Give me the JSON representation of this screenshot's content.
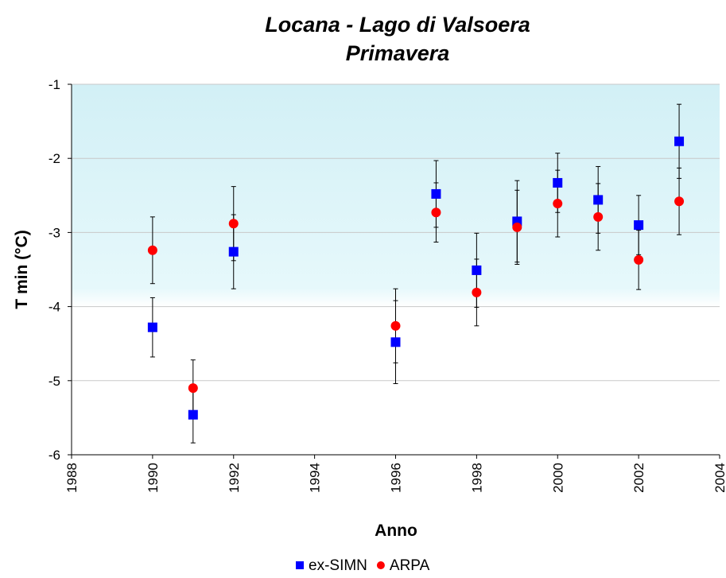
{
  "chart_data": {
    "type": "scatter",
    "title": "Locana - Lago di Valsoera",
    "subtitle": "Primavera",
    "x_label": "Anno",
    "y_label": "T min (°C)",
    "x": [
      1990,
      1991,
      1992,
      1996,
      1997,
      1998,
      1999,
      2000,
      2001,
      2002,
      2003
    ],
    "series": [
      {
        "name": "ex-SIMN",
        "color": "#0000ff",
        "marker": "square",
        "values": [
          -4.28,
          -5.46,
          -3.26,
          -4.48,
          -2.48,
          -3.51,
          -2.85,
          -2.33,
          -2.56,
          -2.9,
          -1.77
        ],
        "errors": [
          0.4,
          0.38,
          0.5,
          0.56,
          0.45,
          0.5,
          0.55,
          0.4,
          0.45,
          0.4,
          0.5
        ]
      },
      {
        "name": "ARPA",
        "color": "#ff0000",
        "marker": "circle",
        "values": [
          -3.24,
          -5.1,
          -2.88,
          -4.26,
          -2.73,
          -3.81,
          -2.93,
          -2.61,
          -2.79,
          -3.37,
          -2.58
        ],
        "errors": [
          0.45,
          0.38,
          0.5,
          0.5,
          0.4,
          0.45,
          0.5,
          0.45,
          0.45,
          0.4,
          0.45
        ]
      }
    ],
    "xlim": [
      1988,
      2004
    ],
    "xticks": [
      1988,
      1990,
      1992,
      1994,
      1996,
      1998,
      2000,
      2002,
      2004
    ],
    "ylim": [
      -6,
      -1
    ],
    "yticks": [
      -6,
      -5,
      -4,
      -3,
      -2,
      -1
    ],
    "grid": true,
    "legend": "bottom"
  }
}
